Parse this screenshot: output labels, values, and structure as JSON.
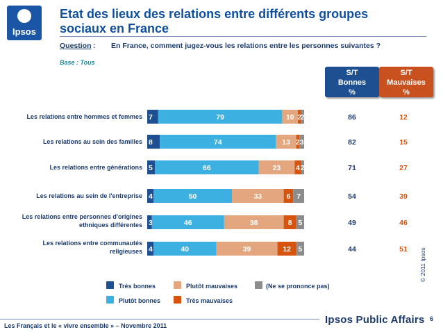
{
  "header": {
    "logo_text": "Ipsos",
    "title_line1": "Etat des lieux des relations entre différents groupes",
    "title_line2": "sociaux en France",
    "question_label": "Question",
    "question_colon": ":",
    "question_text": "En France, comment jugez-vous les relations entre les personnes suivantes ?",
    "base": "Base : Tous"
  },
  "summary_headers": {
    "good": {
      "l1": "S/T",
      "l2": "Bonnes",
      "l3": "%"
    },
    "bad": {
      "l1": "S/T",
      "l2": "Mauvaises",
      "l3": "%"
    }
  },
  "chart_data": {
    "type": "bar",
    "orientation": "horizontal",
    "stacked": true,
    "categories": [
      [
        "Les relations entre hommes et femmes"
      ],
      [
        "Les relations au sein des familles"
      ],
      [
        "Les relations entre générations"
      ],
      [
        "Les relations au sein de l'entreprise"
      ],
      [
        "Les relations entre personnes d'origines",
        "ethniques différentes"
      ],
      [
        "Les relations entre communautés",
        "religieuses"
      ]
    ],
    "series": [
      {
        "name": "Très bonnes",
        "color": "#1d4f91",
        "values": [
          7,
          8,
          5,
          4,
          3,
          4
        ]
      },
      {
        "name": "Plutôt bonnes",
        "color": "#3cb0e0",
        "values": [
          79,
          74,
          66,
          50,
          46,
          40
        ]
      },
      {
        "name": "Plutôt mauvaises",
        "color": "#e3a67e",
        "values": [
          10,
          13,
          23,
          33,
          38,
          39
        ]
      },
      {
        "name": "Très mauvaises",
        "color": "#d6540e",
        "values": [
          2,
          2,
          4,
          6,
          8,
          12
        ]
      },
      {
        "name": "(Ne se prononce pas)",
        "color": "#8c8c8c",
        "values": [
          2,
          3,
          2,
          7,
          5,
          5
        ]
      }
    ],
    "totals": {
      "good": [
        86,
        82,
        71,
        54,
        49,
        44
      ],
      "bad": [
        12,
        15,
        27,
        39,
        46,
        51
      ]
    },
    "xlim": [
      0,
      100
    ],
    "legend_position": "bottom"
  },
  "footer": {
    "text": "Les Français et le « vivre ensemble » – Novembre 2011",
    "brand": "Ipsos Public Affairs",
    "page": "6",
    "copyright": "© 2011 Ipsos"
  }
}
